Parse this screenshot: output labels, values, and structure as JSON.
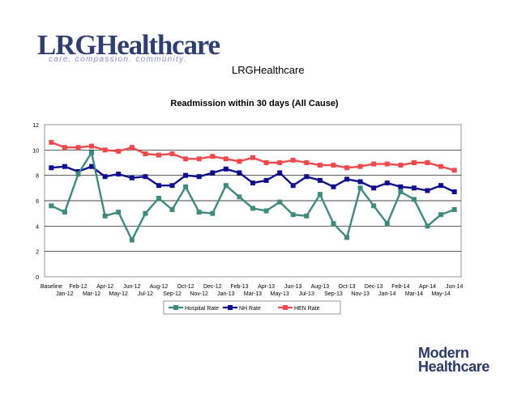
{
  "logo": {
    "name": "LRGHealthcare",
    "tagline": "care. compassion. community."
  },
  "slide_title": "LRGHealthcare",
  "footer_logo": {
    "line1": "Modern",
    "line2": "Healthcare"
  },
  "colors": {
    "hospital": "#3f8a7e",
    "nh": "#0e0e8e",
    "hen": "#f0494b",
    "grid": "#000000"
  },
  "chart_data": {
    "type": "line",
    "title": "Readmission within 30 days (All Cause)",
    "xlabel": "",
    "ylabel": "",
    "ylim": [
      0,
      12
    ],
    "yticks": [
      0,
      2,
      4,
      6,
      8,
      10,
      12
    ],
    "grid": true,
    "legend_position": "bottom",
    "categories": [
      "Baseline",
      "Jan-12",
      "Feb-12",
      "Mar-12",
      "Apr-12",
      "May-12",
      "Jun-12",
      "Jul-12",
      "Aug-12",
      "Sep-12",
      "Oct-12",
      "Nov-12",
      "Dec-12",
      "Jan-13",
      "Feb-13",
      "Mar-13",
      "Apr-13",
      "May-13",
      "Jun-13",
      "Jul-13",
      "Aug-13",
      "Sep-13",
      "Oct-13",
      "Nov-13",
      "Dec-13",
      "Jan-14",
      "Feb-14",
      "Mar-14",
      "Apr-14",
      "May-14",
      "Jun-14"
    ],
    "series": [
      {
        "name": "Hospital Rate",
        "color": "#3f8a7e",
        "values": [
          5.6,
          5.1,
          8.1,
          9.8,
          4.8,
          5.1,
          2.9,
          5.0,
          6.2,
          5.3,
          7.1,
          5.1,
          5.0,
          7.2,
          6.3,
          5.4,
          5.2,
          5.9,
          4.9,
          4.8,
          6.5,
          4.2,
          3.1,
          7.0,
          5.6,
          4.2,
          6.7,
          6.1,
          4.0,
          4.9,
          5.3
        ]
      },
      {
        "name": "NH Rate",
        "color": "#0e0e8e",
        "values": [
          8.6,
          8.7,
          8.3,
          8.7,
          7.9,
          8.1,
          7.8,
          7.9,
          7.2,
          7.2,
          8.0,
          7.9,
          8.2,
          8.5,
          8.2,
          7.4,
          7.6,
          8.2,
          7.2,
          7.9,
          7.6,
          7.1,
          7.7,
          7.5,
          7.0,
          7.4,
          7.1,
          7.0,
          6.8,
          7.2,
          6.7
        ]
      },
      {
        "name": "HEN Rate",
        "color": "#f0494b",
        "values": [
          10.6,
          10.2,
          10.2,
          10.3,
          10.0,
          9.9,
          10.2,
          9.7,
          9.6,
          9.7,
          9.3,
          9.3,
          9.5,
          9.3,
          9.1,
          9.4,
          9.0,
          9.0,
          9.2,
          9.0,
          8.8,
          8.8,
          8.6,
          8.7,
          8.9,
          8.9,
          8.8,
          9.0,
          9.0,
          8.7,
          8.4
        ]
      }
    ]
  }
}
